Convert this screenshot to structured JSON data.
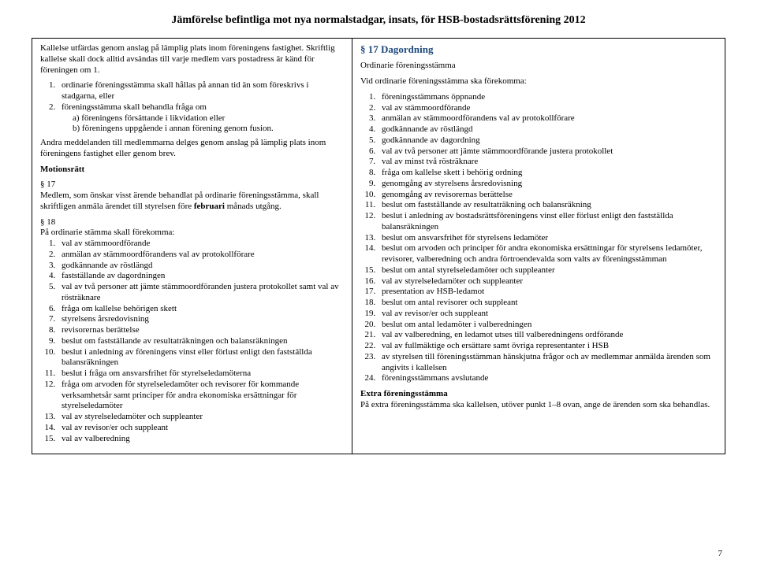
{
  "header": "Jämförelse befintliga mot nya normalstadgar, insats, för HSB-bostadsrättsförening 2012",
  "left": {
    "p1": "Kallelse utfärdas genom anslag på lämplig plats inom föreningens fastighet. Skriftlig kallelse skall dock alltid avsändas till varje medlem vars postadress är känd för föreningen om 1.",
    "li1": "ordinarie föreningsstämma skall hållas på annan tid än som föreskrivs i stadgarna, eller",
    "li2": "föreningsstämma skall behandla fråga om",
    "li2a": "a) föreningens försättande i likvidation eller",
    "li2b": "b) föreningens uppgående i annan förening genom fusion.",
    "p2": "Andra meddelanden till medlemmarna delges genom anslag på lämplig plats inom föreningens fastighet eller genom brev.",
    "motionsratt": "Motionsrätt",
    "s17": "§ 17",
    "p17a": "Medlem, som önskar visst ärende behandlat på ordinarie föreningsstämma, skall skriftligen anmäla ärendet till styrelsen före ",
    "p17b": "februari",
    "p17c": " månads utgång.",
    "s18": "§ 18",
    "p18lead": "På ordinarie stämma skall förekomma:",
    "items18": [
      "val av stämmoordförande",
      "anmälan av stämmoordförandens val av protokollförare",
      "godkännande av röstlängd",
      "fastställande av dagordningen",
      "val av två personer att jämte stämmoordföranden justera protokollet samt val av rösträknare",
      "fråga om kallelse behörigen skett",
      "styrelsens årsredovisning",
      "revisorernas berättelse",
      "beslut om fastställande av resultaträkningen och balansräkningen",
      "beslut i anledning av föreningens vinst eller förlust enligt den fastställda balansräkningen",
      "beslut i fråga om ansvarsfrihet för styrelseledamöterna",
      "fråga om arvoden för styrelseledamöter och revisorer för kommande verksamhetsår samt principer för andra ekonomiska ersättningar för styrelseledamöter",
      "val av styrelseledamöter och suppleanter",
      "val av revisor/er och suppleant",
      "val av valberedning"
    ]
  },
  "right": {
    "title": "§ 17 Dagordning",
    "p1": "Ordinarie föreningsstämma",
    "p2": "Vid ordinarie föreningsstämma ska förekomma:",
    "items": [
      "föreningsstämmans öppnande",
      "val av stämmoordförande",
      "anmälan av stämmoordförandens val av protokollförare",
      "godkännande av röstlängd",
      "godkännande av dagordning",
      "val av två personer att jämte stämmoordförande justera protokollet",
      "val av minst två rösträknare",
      "fråga om kallelse skett i behörig ordning",
      "genomgång av styrelsens årsredovisning",
      "genomgång av revisorernas berättelse",
      "beslut om fastställande av resultaträkning och balansräkning",
      "beslut i anledning av bostadsrättsföreningens vinst eller förlust enligt den fastställda balansräkningen",
      "beslut om ansvarsfrihet för styrelsens ledamöter",
      "beslut om arvoden och principer för andra ekonomiska ersättningar för styrelsens ledamöter, revisorer, valberedning och andra förtroendevalda som valts av föreningsstämman",
      "beslut om antal styrelseledamöter och suppleanter",
      "val av styrelseledamöter och suppleanter",
      "presentation av HSB-ledamot",
      "beslut om antal revisorer och suppleant",
      "val av revisor/er och suppleant",
      "beslut om antal ledamöter i valberedningen",
      "val av valberedning, en ledamot utses till valberedningens ordförande",
      "val av fullmäktige och ersättare samt övriga representanter i HSB",
      "av styrelsen till föreningsstämman hänskjutna frågor och av medlemmar anmälda ärenden som angivits i kallelsen",
      "föreningsstämmans avslutande"
    ],
    "extra_title": "Extra föreningsstämma",
    "extra_p": "På extra föreningsstämma ska kallelsen, utöver punkt 1–8 ovan, ange de ärenden som ska behandlas."
  },
  "pagenum": "7"
}
